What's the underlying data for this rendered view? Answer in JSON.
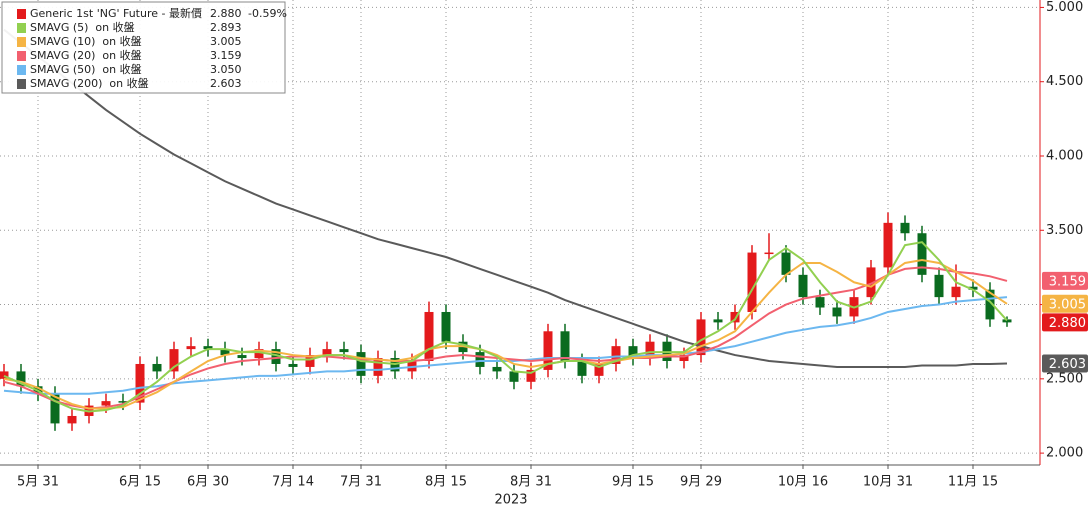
{
  "chart_data": {
    "type": "candlestick",
    "x_group_label": "2023",
    "categories": [
      null,
      null,
      "5月 31",
      null,
      null,
      null,
      null,
      null,
      "6月 15",
      null,
      null,
      null,
      "6月 30",
      null,
      null,
      null,
      null,
      "7月 14",
      null,
      null,
      null,
      "7月 31",
      null,
      null,
      null,
      null,
      "8月 15",
      null,
      null,
      null,
      null,
      "8月 31",
      null,
      null,
      null,
      null,
      null,
      "9月 15",
      null,
      null,
      null,
      "9月 29",
      null,
      null,
      null,
      null,
      null,
      "10月 16",
      null,
      null,
      null,
      null,
      "10月 31",
      null,
      null,
      null,
      null,
      "11月 15",
      null,
      null
    ],
    "series": [
      {
        "name": "Generic 1st 'NG' Future - 最新價",
        "type": "candlestick",
        "color": "#e31a1c",
        "up_color": "#e31a1c",
        "down_color": "#0a6b1f",
        "last_label": "2.880",
        "change_label": "-0.59%",
        "tag": true,
        "open": [
          2.5,
          2.55,
          2.45,
          2.4,
          2.2,
          2.25,
          2.32,
          2.35,
          2.34,
          2.6,
          2.55,
          2.7,
          2.72,
          2.7,
          2.66,
          2.64,
          2.7,
          2.6,
          2.58,
          2.66,
          2.7,
          2.68,
          2.52,
          2.64,
          2.55,
          2.62,
          2.95,
          2.75,
          2.68,
          2.58,
          2.55,
          2.48,
          2.56,
          2.82,
          2.62,
          2.52,
          2.6,
          2.72,
          2.64,
          2.75,
          2.62,
          2.66,
          2.9,
          2.88,
          2.95,
          3.35,
          3.35,
          3.2,
          3.05,
          2.98,
          2.92,
          3.05,
          3.25,
          3.55,
          3.48,
          3.2,
          3.05,
          3.12,
          3.1,
          2.9
        ],
        "high": [
          2.6,
          2.6,
          2.5,
          2.45,
          2.3,
          2.37,
          2.4,
          2.4,
          2.65,
          2.65,
          2.75,
          2.78,
          2.77,
          2.75,
          2.71,
          2.75,
          2.75,
          2.65,
          2.71,
          2.75,
          2.75,
          2.73,
          2.69,
          2.69,
          2.67,
          3.02,
          3.0,
          2.8,
          2.73,
          2.63,
          2.6,
          2.61,
          2.87,
          2.87,
          2.67,
          2.65,
          2.77,
          2.77,
          2.8,
          2.8,
          2.71,
          2.95,
          2.95,
          3.0,
          3.4,
          3.48,
          3.4,
          3.25,
          3.1,
          3.03,
          3.1,
          3.3,
          3.62,
          3.6,
          3.53,
          3.25,
          3.27,
          3.17,
          3.15,
          2.92
        ],
        "low": [
          2.45,
          2.4,
          2.35,
          2.15,
          2.15,
          2.2,
          2.27,
          2.29,
          2.29,
          2.5,
          2.5,
          2.65,
          2.65,
          2.61,
          2.59,
          2.59,
          2.55,
          2.53,
          2.53,
          2.61,
          2.63,
          2.47,
          2.47,
          2.5,
          2.5,
          2.57,
          2.7,
          2.63,
          2.53,
          2.5,
          2.43,
          2.43,
          2.51,
          2.57,
          2.47,
          2.47,
          2.55,
          2.59,
          2.59,
          2.57,
          2.57,
          2.61,
          2.83,
          2.83,
          2.9,
          3.3,
          3.15,
          3.0,
          2.93,
          2.87,
          2.87,
          3.0,
          3.2,
          3.43,
          3.15,
          3.0,
          3.0,
          3.05,
          2.85,
          2.85
        ],
        "close": [
          2.55,
          2.45,
          2.4,
          2.2,
          2.25,
          2.32,
          2.35,
          2.34,
          2.6,
          2.55,
          2.7,
          2.72,
          2.7,
          2.66,
          2.64,
          2.7,
          2.6,
          2.58,
          2.66,
          2.7,
          2.68,
          2.52,
          2.64,
          2.55,
          2.62,
          2.95,
          2.75,
          2.68,
          2.58,
          2.55,
          2.48,
          2.56,
          2.82,
          2.62,
          2.52,
          2.6,
          2.72,
          2.64,
          2.75,
          2.62,
          2.66,
          2.9,
          2.88,
          2.95,
          3.35,
          3.35,
          3.2,
          3.05,
          2.98,
          2.92,
          3.05,
          3.25,
          3.55,
          3.48,
          3.2,
          3.05,
          3.12,
          3.1,
          2.9,
          2.88
        ]
      },
      {
        "name": "SMAVG (5)  on 收盤",
        "type": "line",
        "color": "#92d050",
        "last_label": "2.893",
        "tag": false,
        "values": [
          2.52,
          2.47,
          2.42,
          2.35,
          2.3,
          2.28,
          2.29,
          2.32,
          2.4,
          2.48,
          2.58,
          2.65,
          2.7,
          2.7,
          2.68,
          2.68,
          2.66,
          2.63,
          2.63,
          2.66,
          2.66,
          2.62,
          2.61,
          2.6,
          2.62,
          2.7,
          2.75,
          2.73,
          2.7,
          2.65,
          2.55,
          2.54,
          2.6,
          2.62,
          2.62,
          2.58,
          2.62,
          2.66,
          2.68,
          2.68,
          2.68,
          2.76,
          2.82,
          2.9,
          3.1,
          3.3,
          3.38,
          3.3,
          3.15,
          3.02,
          2.98,
          3.02,
          3.2,
          3.4,
          3.42,
          3.3,
          3.15,
          3.1,
          3.02,
          2.893
        ]
      },
      {
        "name": "SMAVG (10)  on 收盤",
        "type": "line",
        "color": "#f5b444",
        "last_label": "3.005",
        "tag": true,
        "values": [
          2.5,
          2.48,
          2.44,
          2.38,
          2.33,
          2.3,
          2.3,
          2.31,
          2.36,
          2.41,
          2.48,
          2.55,
          2.62,
          2.66,
          2.68,
          2.69,
          2.68,
          2.66,
          2.65,
          2.66,
          2.66,
          2.64,
          2.63,
          2.62,
          2.64,
          2.7,
          2.72,
          2.72,
          2.7,
          2.66,
          2.6,
          2.58,
          2.6,
          2.62,
          2.62,
          2.6,
          2.62,
          2.64,
          2.65,
          2.66,
          2.67,
          2.72,
          2.76,
          2.82,
          2.95,
          3.08,
          3.2,
          3.28,
          3.28,
          3.22,
          3.15,
          3.12,
          3.2,
          3.28,
          3.3,
          3.28,
          3.22,
          3.16,
          3.08,
          3.005
        ]
      },
      {
        "name": "SMAVG (20)  on 收盤",
        "type": "line",
        "color": "#f2606f",
        "last_label": "3.159",
        "tag": true,
        "values": [
          2.48,
          2.45,
          2.4,
          2.35,
          2.32,
          2.3,
          2.31,
          2.33,
          2.38,
          2.43,
          2.48,
          2.53,
          2.57,
          2.6,
          2.62,
          2.63,
          2.64,
          2.65,
          2.65,
          2.65,
          2.64,
          2.63,
          2.63,
          2.62,
          2.62,
          2.63,
          2.65,
          2.66,
          2.65,
          2.64,
          2.63,
          2.62,
          2.63,
          2.64,
          2.63,
          2.62,
          2.63,
          2.64,
          2.64,
          2.65,
          2.65,
          2.68,
          2.72,
          2.78,
          2.86,
          2.94,
          3.0,
          3.04,
          3.06,
          3.08,
          3.1,
          3.14,
          3.2,
          3.24,
          3.25,
          3.24,
          3.22,
          3.21,
          3.19,
          3.159
        ]
      },
      {
        "name": "SMAVG (50)  on 收盤",
        "type": "line",
        "color": "#6cb8f0",
        "last_label": "3.050",
        "tag": false,
        "values": [
          2.42,
          2.41,
          2.4,
          2.4,
          2.4,
          2.4,
          2.41,
          2.42,
          2.44,
          2.45,
          2.47,
          2.48,
          2.49,
          2.5,
          2.51,
          2.52,
          2.52,
          2.53,
          2.54,
          2.55,
          2.55,
          2.56,
          2.56,
          2.57,
          2.58,
          2.59,
          2.6,
          2.61,
          2.62,
          2.62,
          2.62,
          2.63,
          2.64,
          2.64,
          2.64,
          2.64,
          2.65,
          2.65,
          2.66,
          2.66,
          2.67,
          2.68,
          2.7,
          2.72,
          2.75,
          2.78,
          2.81,
          2.83,
          2.85,
          2.86,
          2.88,
          2.91,
          2.95,
          2.97,
          2.99,
          3.0,
          3.02,
          3.03,
          3.04,
          3.05
        ]
      },
      {
        "name": "SMAVG (200)  on 收盤",
        "type": "line",
        "color": "#5a5a5a",
        "last_label": "2.603",
        "tag": true,
        "values": [
          4.85,
          4.76,
          4.67,
          4.58,
          4.49,
          4.4,
          4.31,
          4.23,
          4.15,
          4.08,
          4.01,
          3.95,
          3.89,
          3.83,
          3.78,
          3.73,
          3.68,
          3.64,
          3.6,
          3.56,
          3.52,
          3.48,
          3.44,
          3.41,
          3.38,
          3.35,
          3.32,
          3.28,
          3.24,
          3.2,
          3.16,
          3.12,
          3.08,
          3.03,
          2.99,
          2.95,
          2.91,
          2.87,
          2.83,
          2.79,
          2.75,
          2.72,
          2.69,
          2.66,
          2.64,
          2.62,
          2.61,
          2.6,
          2.59,
          2.58,
          2.58,
          2.58,
          2.58,
          2.58,
          2.59,
          2.59,
          2.59,
          2.6,
          2.6,
          2.603
        ]
      }
    ],
    "ylim": [
      1.92,
      5.05
    ],
    "yticks": [
      {
        "value": 2,
        "label": "2.000"
      },
      {
        "value": 2.5,
        "label": "2.500"
      },
      {
        "value": 3,
        "label": "3.000"
      },
      {
        "value": 3.5,
        "label": "3.500"
      },
      {
        "value": 4,
        "label": "4.000"
      },
      {
        "value": 4.5,
        "label": "4.500"
      },
      {
        "value": 5,
        "label": "5.000"
      }
    ],
    "grid": true
  }
}
